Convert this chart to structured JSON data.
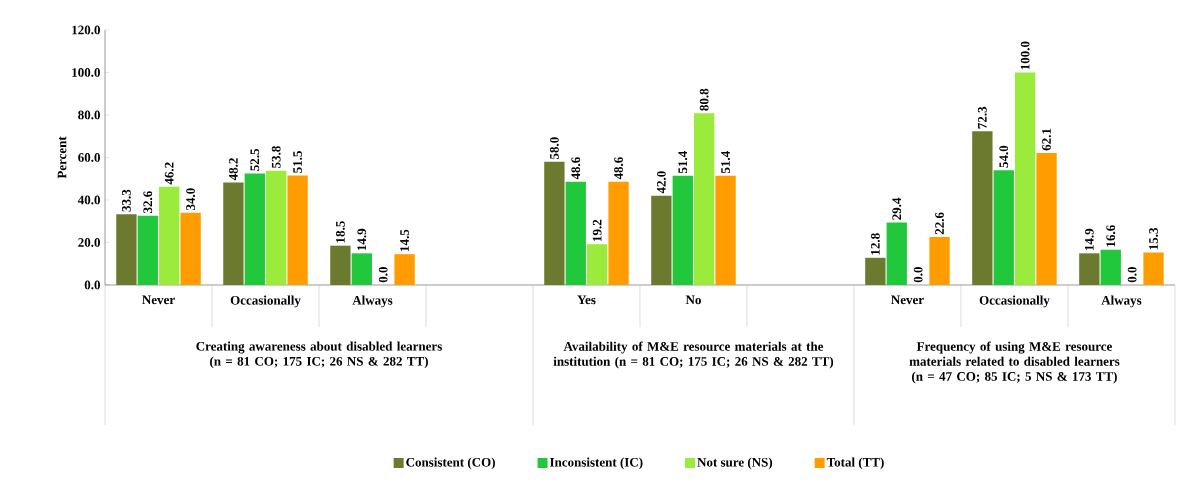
{
  "chart_data": {
    "type": "bar",
    "ylabel": "Percent",
    "categories": [
      "Never",
      "Occasionally",
      "Always",
      null,
      "Yes",
      "No",
      null,
      "Never",
      "Occasionally",
      "Always"
    ],
    "series": [
      {
        "name": "Consistent (CO)",
        "color": "#6b7a2e",
        "values": [
          33.3,
          48.2,
          18.5,
          null,
          58.0,
          42.0,
          null,
          12.8,
          72.3,
          14.9
        ],
        "value_labels": [
          "33.3",
          "48.2",
          "18.5",
          null,
          "58.0",
          "42.0",
          null,
          "12.8",
          "72.3",
          "14.9"
        ]
      },
      {
        "name": "Inconsistent (IC)",
        "color": "#22c83c",
        "values": [
          32.6,
          52.5,
          14.9,
          null,
          48.6,
          51.4,
          null,
          29.4,
          54.0,
          16.6
        ],
        "value_labels": [
          "32.6",
          "52.5",
          "14.9",
          null,
          "48.6",
          "51.4",
          null,
          "29.4",
          "54.0",
          "16.6"
        ]
      },
      {
        "name": "Not sure (NS)",
        "color": "#9aeb3c",
        "values": [
          46.2,
          53.8,
          0.0,
          null,
          19.2,
          80.8,
          null,
          0.0,
          100.0,
          0.0
        ],
        "value_labels": [
          "46.2",
          "53.8",
          "0.0",
          null,
          "19.2",
          "80.8",
          null,
          "0.0",
          "100.0",
          "0.0"
        ]
      },
      {
        "name": "Total (TT)",
        "color": "#ff9c00",
        "values": [
          34.0,
          51.5,
          14.5,
          null,
          48.6,
          51.4,
          null,
          22.6,
          62.1,
          15.3
        ],
        "value_labels": [
          "34.0",
          "51.5",
          "14.5",
          null,
          "48.6",
          "51.4",
          null,
          "22.6",
          "62.1",
          "15.3"
        ]
      }
    ],
    "ylim": [
      0,
      120
    ],
    "yticks": [
      {
        "value": 0,
        "label": "0.0"
      },
      {
        "value": 20,
        "label": "20.0"
      },
      {
        "value": 40,
        "label": "40.0"
      },
      {
        "value": 60,
        "label": "60.0"
      },
      {
        "value": 80,
        "label": "80.0"
      },
      {
        "value": 100,
        "label": "100.0"
      },
      {
        "value": 120,
        "label": "120.0"
      }
    ],
    "annotations": [
      "Creating awareness about disabled learners (n = 81 CO; 175 IC; 26 NS & 282 TT)",
      "Availability of M&E resource materials at the institution (n = 81 CO; 175 IC; 26 NS & 282 TT)",
      "Frequency of using M&E resource materials related to disabled learners (n = 47 CO; 85 IC; 5 NS & 173 TT)"
    ],
    "legend": "bottom",
    "grid": false
  }
}
